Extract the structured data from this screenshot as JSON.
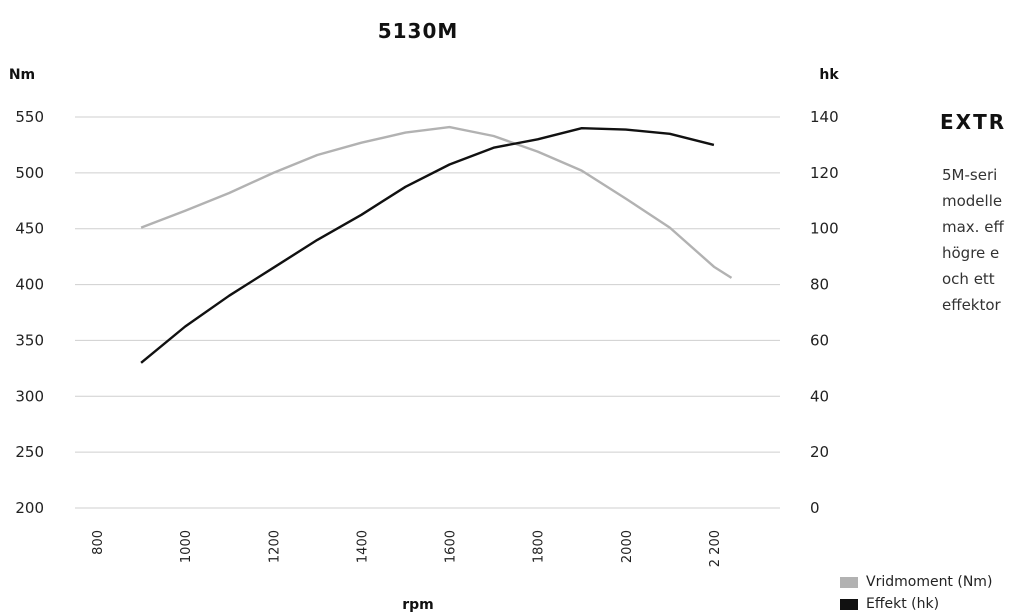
{
  "chart_data": {
    "type": "line",
    "title": "5130M",
    "xlabel": "rpm",
    "ylabel_left": "Nm",
    "ylabel_right": "hk",
    "xlim": [
      750,
      2350
    ],
    "ylim_left": [
      200,
      550
    ],
    "ylim_right": [
      0,
      140
    ],
    "x_ticks": [
      "800",
      "1000",
      "1200",
      "1400",
      "1600",
      "1800",
      "2000",
      "2200"
    ],
    "y_ticks_left": [
      "550",
      "500",
      "450",
      "400",
      "350",
      "300",
      "250",
      "200"
    ],
    "y_ticks_right": [
      "140",
      "120",
      "100",
      "80",
      "60",
      "40",
      "20",
      "0"
    ],
    "grid": true,
    "legend_position": "bottom-right",
    "series": [
      {
        "name": "Vridmoment (Nm)",
        "axis": "left",
        "color": "#b2b2b2",
        "x": [
          900,
          1000,
          1100,
          1200,
          1300,
          1400,
          1500,
          1600,
          1700,
          1800,
          1900,
          2000,
          2100,
          2200,
          2240
        ],
        "y": [
          451,
          466,
          482,
          500,
          516,
          527,
          536,
          541,
          533,
          519,
          502,
          477,
          451,
          416,
          406
        ]
      },
      {
        "name": "Effekt (hk)",
        "axis": "right",
        "color": "#111111",
        "x": [
          900,
          1000,
          1100,
          1200,
          1300,
          1400,
          1500,
          1600,
          1700,
          1800,
          1900,
          2000,
          2100,
          2200
        ],
        "y": [
          52,
          65,
          76,
          86,
          96,
          105,
          115,
          123,
          129,
          132,
          136,
          135.5,
          134,
          130
        ]
      }
    ]
  },
  "side_text": {
    "heading": "EXTR",
    "lines": [
      "5M-seri",
      "modelle",
      "max. eff",
      "högre e",
      "och ett",
      "effektor"
    ]
  }
}
